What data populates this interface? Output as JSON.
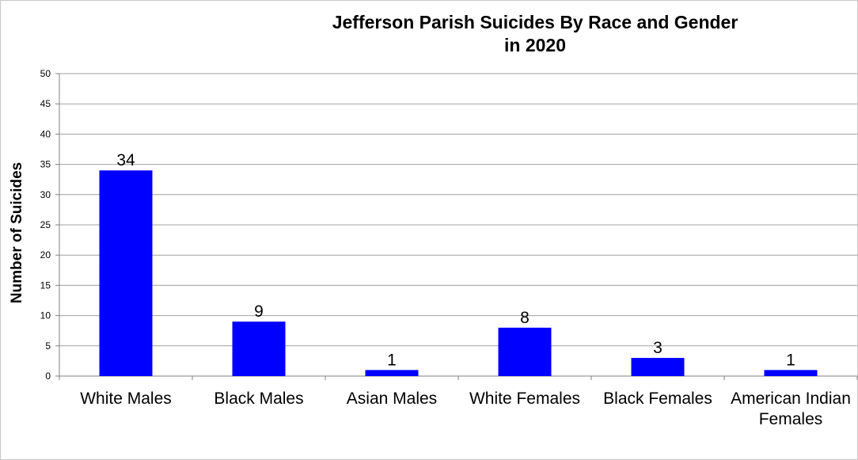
{
  "chart_data": {
    "type": "bar",
    "title_lines": [
      "Jefferson Parish Suicides By Race and Gender",
      "in 2020"
    ],
    "ylabel": "Number of Suicides",
    "xlabel": "",
    "categories": [
      [
        "White Males"
      ],
      [
        "Black Males"
      ],
      [
        "Asian Males"
      ],
      [
        "White Females"
      ],
      [
        "Black Females"
      ],
      [
        "American Indian",
        "Females"
      ]
    ],
    "values": [
      34,
      9,
      1,
      8,
      3,
      1
    ],
    "data_labels": [
      "34",
      "9",
      "1",
      "8",
      "3",
      "1"
    ],
    "ylim": [
      0,
      50
    ],
    "yticks": [
      0,
      5,
      10,
      15,
      20,
      25,
      30,
      35,
      40,
      45,
      50
    ],
    "grid": true,
    "legend": "none",
    "bar_color": "#0000ff"
  }
}
